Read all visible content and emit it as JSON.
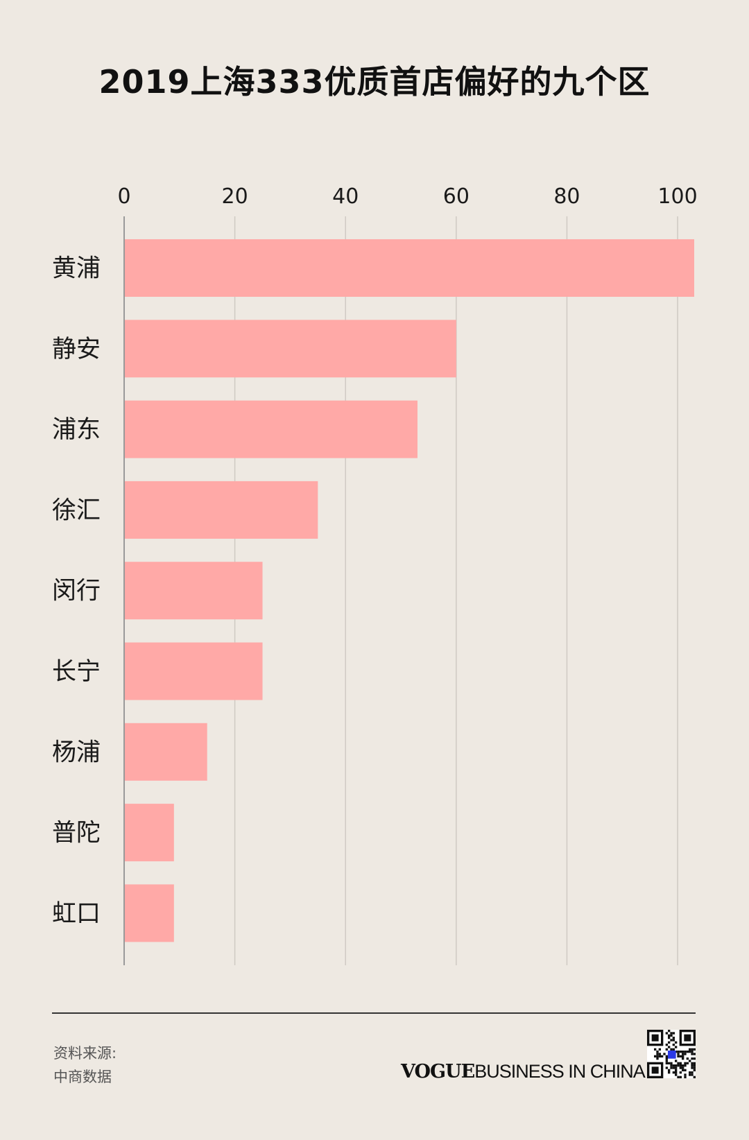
{
  "title": "2019上海333优质首店偏好的九个区",
  "chart_data": {
    "type": "bar",
    "orientation": "horizontal",
    "title": "2019上海333优质首店偏好的九个区",
    "categories": [
      "黄浦",
      "静安",
      "浦东",
      "徐汇",
      "闵行",
      "长宁",
      "杨浦",
      "普陀",
      "虹口"
    ],
    "values": [
      103,
      60,
      53,
      35,
      25,
      25,
      15,
      9,
      9
    ],
    "xlim": [
      0,
      103
    ],
    "xticks": [
      0,
      20,
      40,
      60,
      80,
      100
    ],
    "xaxis_position": "top",
    "grid": true,
    "bar_color": "#ffa9a7",
    "grid_color": "#cfcac3",
    "axis_color": "#999999"
  },
  "footer": {
    "source_label": "资料来源:",
    "source_value": "中商数据",
    "brand_vogue": "VOGUE",
    "brand_rest": "BUSINESS IN CHINA"
  },
  "colors": {
    "background": "#eee9e2",
    "qr_accent": "#2b39e6"
  }
}
